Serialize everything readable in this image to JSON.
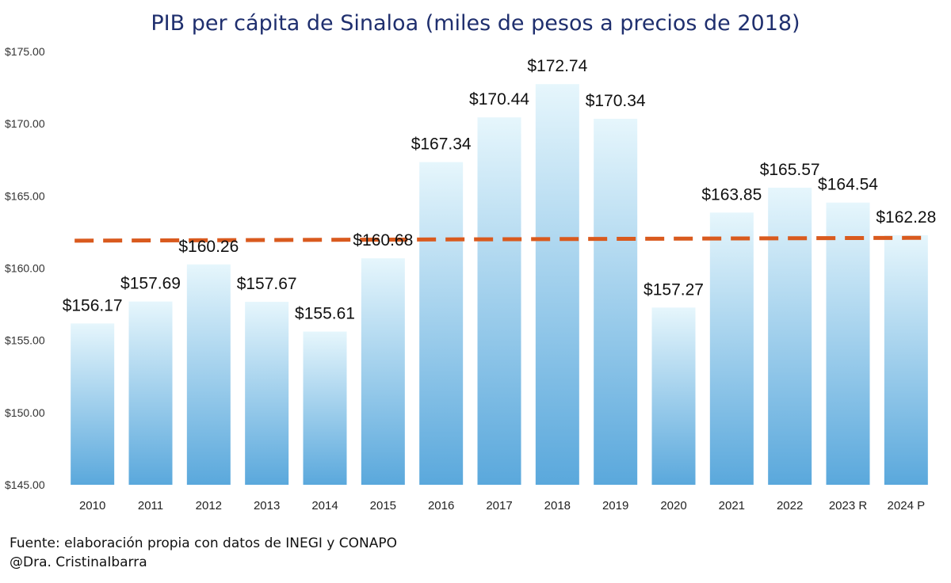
{
  "chart_data": {
    "type": "bar",
    "title": "PIB per cápita de Sinaloa (miles de pesos a precios de 2018)",
    "categories": [
      "2010",
      "2011",
      "2012",
      "2013",
      "2014",
      "2015",
      "2016",
      "2017",
      "2018",
      "2019",
      "2020",
      "2021",
      "2022",
      "2023 R",
      "2024 P"
    ],
    "series": [
      {
        "values": [
          156.17,
          157.69,
          160.26,
          157.67,
          155.61,
          160.68,
          167.34,
          170.44,
          172.74,
          170.34,
          157.27,
          163.85,
          165.57,
          164.54,
          162.28
        ]
      }
    ],
    "data_labels": [
      "$156.17",
      "$157.69",
      "$160.26",
      "$157.67",
      "$155.61",
      "$160.68",
      "$167.34",
      "$170.44",
      "$172.74",
      "$170.34",
      "$157.27",
      "$163.85",
      "$165.57",
      "$164.54",
      "$162.28"
    ],
    "trendline": {
      "start": 161.9,
      "end": 162.1,
      "color": "#d95a1e",
      "style": "dashed"
    },
    "ylim": [
      145,
      175
    ],
    "yticks": [
      145,
      150,
      155,
      160,
      165,
      170,
      175
    ],
    "ytick_labels": [
      "$145.00",
      "$150.00",
      "$155.00",
      "$160.00",
      "$165.00",
      "$170.00",
      "$175.00"
    ],
    "grid": false,
    "legend": "none",
    "bar_color_top": "#e6f6fc",
    "bar_color_bottom": "#5aa8dc"
  },
  "footer": {
    "source": "Fuente: elaboración propia con datos de INEGI y CONAPO",
    "author": "@Dra. CristinaIbarra"
  }
}
